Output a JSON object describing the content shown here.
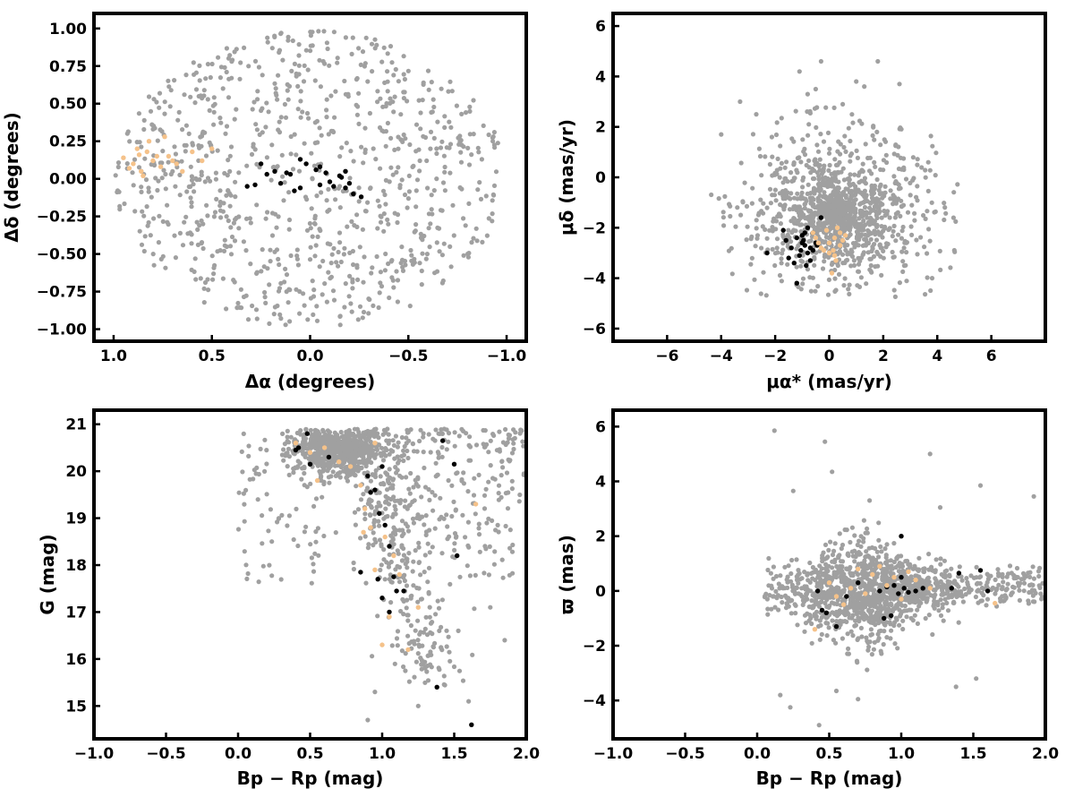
{
  "chart_data": [
    {
      "type": "scatter",
      "panel": "top-left",
      "xlabel": "Δα (degrees)",
      "ylabel": "Δδ (degrees)",
      "xlim": [
        1.1,
        -1.1
      ],
      "ylim": [
        -1.08,
        1.1
      ],
      "xticks": [
        1.0,
        0.5,
        0.0,
        -0.5,
        -1.0
      ],
      "xtick_labels": [
        "1.0",
        "0.5",
        "0.0",
        "−0.5",
        "−1.0"
      ],
      "yticks": [
        -1.0,
        -0.75,
        -0.5,
        -0.25,
        0.0,
        0.25,
        0.5,
        0.75,
        1.0
      ],
      "ytick_labels": [
        "−1.00",
        "−0.75",
        "−0.50",
        "−0.25",
        "0.00",
        "0.25",
        "0.50",
        "0.75",
        "1.00"
      ],
      "background_field": {
        "color": "#a0a0a0",
        "count": 900,
        "distribution": "uniform disk, radius 1.0 deg"
      },
      "series": [
        {
          "color": "#000000",
          "x": [
            -0.15,
            -0.05,
            0.05,
            0.1,
            0.18,
            0.22,
            0.28,
            0.32,
            0.25,
            0.12,
            0.02,
            -0.03,
            -0.08,
            -0.12,
            -0.18,
            -0.22,
            -0.26,
            -0.2,
            -0.16,
            -0.1,
            -0.05,
            0.05,
            0.08,
            0.15,
            -0.18
          ],
          "y": [
            0.02,
            0.08,
            0.13,
            0.03,
            0.05,
            0.03,
            -0.04,
            -0.05,
            0.1,
            0.04,
            0.1,
            0.06,
            0.04,
            -0.05,
            -0.06,
            -0.1,
            -0.12,
            -0.03,
            0.01,
            -0.02,
            -0.04,
            -0.06,
            -0.08,
            -0.03,
            0.05
          ]
        },
        {
          "color": "#f5c28a",
          "x": [
            0.95,
            0.9,
            0.86,
            0.83,
            0.8,
            0.76,
            0.72,
            0.68,
            0.65,
            0.6,
            0.55,
            0.5,
            0.88,
            0.82,
            0.78,
            0.92,
            0.85,
            0.74,
            0.7,
            0.87
          ],
          "y": [
            0.14,
            0.1,
            0.05,
            0.18,
            0.12,
            0.08,
            0.15,
            0.1,
            0.05,
            0.18,
            0.12,
            0.2,
            0.2,
            0.25,
            0.15,
            0.07,
            0.02,
            0.28,
            0.12,
            0.16
          ]
        }
      ]
    },
    {
      "type": "scatter",
      "panel": "top-right",
      "xlabel": "μα* (mas/yr)",
      "ylabel": "μδ (mas/yr)",
      "xlim": [
        -8,
        8
      ],
      "ylim": [
        -6.5,
        6.5
      ],
      "xticks": [
        -6,
        -4,
        -2,
        0,
        2,
        4,
        6
      ],
      "xtick_labels": [
        "−6",
        "−4",
        "−2",
        "0",
        "2",
        "4",
        "6"
      ],
      "yticks": [
        -6,
        -4,
        -2,
        0,
        2,
        4,
        6
      ],
      "ytick_labels": [
        "−6",
        "−4",
        "−2",
        "0",
        "2",
        "4",
        "6"
      ],
      "background_field": {
        "color": "#a0a0a0",
        "count": 1300,
        "distribution": "disk centered (0.2,-1.5), radius ~4.8 mas/yr, densest near center"
      },
      "series": [
        {
          "color": "#000000",
          "x": [
            -1.6,
            -1.4,
            -1.2,
            -1.0,
            -0.9,
            -0.8,
            -0.7,
            -0.6,
            -0.5,
            -1.1,
            -0.9,
            -1.3,
            -0.8,
            -1.5,
            -1.0,
            -0.7,
            -0.3,
            -2.3,
            -1.2,
            -0.95,
            -0.85,
            -1.05,
            -0.6,
            -0.45,
            -1.7
          ],
          "y": [
            -2.5,
            -2.8,
            -2.4,
            -2.3,
            -2.7,
            -3.0,
            -3.3,
            -2.9,
            -2.6,
            -3.1,
            -2.2,
            -3.4,
            -2.0,
            -3.2,
            -2.6,
            -2.8,
            -1.6,
            -3.0,
            -4.2,
            -2.5,
            -3.5,
            -2.9,
            -2.2,
            -2.7,
            -2.1
          ]
        },
        {
          "color": "#f5c28a",
          "x": [
            -0.6,
            -0.4,
            -0.2,
            0.0,
            0.2,
            0.4,
            0.6,
            0.3,
            0.1,
            -0.3,
            0.5,
            0.2,
            -0.1,
            0.4,
            0.0,
            -0.5,
            0.25,
            0.15
          ],
          "y": [
            -2.2,
            -2.6,
            -2.9,
            -3.0,
            -2.4,
            -2.7,
            -2.3,
            -2.0,
            -3.8,
            -2.8,
            -2.5,
            -3.1,
            -2.1,
            -2.2,
            -2.6,
            -2.4,
            -3.3,
            -2.9
          ]
        }
      ]
    },
    {
      "type": "scatter",
      "panel": "bottom-left",
      "xlabel": "Bp − Rp (mag)",
      "ylabel": "G (mag)",
      "xlim": [
        -1.0,
        2.0
      ],
      "ylim": [
        14.3,
        21.3
      ],
      "xticks": [
        -1.0,
        -0.5,
        0.0,
        0.5,
        1.0,
        1.5,
        2.0
      ],
      "xtick_labels": [
        "−1.0",
        "−0.5",
        "0.0",
        "0.5",
        "1.0",
        "1.5",
        "2.0"
      ],
      "yticks": [
        15,
        16,
        17,
        18,
        19,
        20,
        21
      ],
      "ytick_labels": [
        "15",
        "16",
        "17",
        "18",
        "19",
        "20",
        "21"
      ],
      "background_field": {
        "color": "#a0a0a0",
        "count": 1300,
        "distribution": "dense faint clump near (0.7,20.4); giant branch to (1.4,15.4); red faint tail to 2.0"
      },
      "series": [
        {
          "color": "#000000",
          "x": [
            0.48,
            0.4,
            0.42,
            0.5,
            0.63,
            0.9,
            0.92,
            0.95,
            0.98,
            1.0,
            1.02,
            1.05,
            1.08,
            1.1,
            1.15,
            1.05,
            0.85,
            1.38,
            1.42,
            1.52,
            1.62,
            1.5,
            1.0,
            0.97
          ],
          "y": [
            20.8,
            20.45,
            20.5,
            20.15,
            20.3,
            19.9,
            19.55,
            19.6,
            19.1,
            20.1,
            18.85,
            18.4,
            17.75,
            17.45,
            17.45,
            17.0,
            17.85,
            15.4,
            20.65,
            18.2,
            14.6,
            20.15,
            17.3,
            17.7
          ]
        },
        {
          "color": "#f5c28a",
          "x": [
            0.4,
            0.5,
            0.55,
            0.6,
            0.7,
            0.78,
            0.85,
            0.88,
            0.92,
            0.95,
            1.0,
            1.05,
            1.08,
            1.12,
            1.18,
            1.25,
            0.95,
            1.65,
            1.02,
            0.87
          ],
          "y": [
            20.6,
            20.4,
            19.8,
            20.5,
            20.2,
            20.1,
            19.7,
            19.2,
            18.8,
            17.9,
            16.3,
            16.9,
            18.2,
            17.8,
            16.2,
            17.1,
            20.6,
            19.3,
            18.6,
            18.7
          ]
        }
      ]
    },
    {
      "type": "scatter",
      "panel": "bottom-right",
      "xlabel": "Bp − Rp (mag)",
      "ylabel": "ϖ (mas)",
      "xlim": [
        -1.0,
        2.0
      ],
      "ylim": [
        -5.4,
        6.6
      ],
      "xticks": [
        -1.0,
        -0.5,
        0.0,
        0.5,
        1.0,
        1.5,
        2.0
      ],
      "xtick_labels": [
        "−1.0",
        "−0.5",
        "0.0",
        "0.5",
        "1.0",
        "1.5",
        "2.0"
      ],
      "yticks": [
        -4,
        -2,
        0,
        2,
        4,
        6
      ],
      "ytick_labels": [
        "−4",
        "−2",
        "0",
        "2",
        "4",
        "6"
      ],
      "background_field": {
        "color": "#a0a0a0",
        "count": 1300,
        "distribution": "band around ϖ=0, widest near Bp−Rp 0.7, outliers to ±5"
      },
      "series": [
        {
          "color": "#000000",
          "x": [
            0.42,
            0.48,
            0.62,
            0.7,
            0.85,
            0.9,
            0.95,
            0.98,
            1.0,
            1.02,
            1.05,
            1.1,
            1.15,
            1.35,
            1.4,
            1.55,
            1.6,
            1.0,
            0.55,
            0.45,
            0.88,
            0.93
          ],
          "y": [
            0.0,
            -0.8,
            -0.2,
            0.3,
            0.0,
            0.15,
            0.2,
            -0.1,
            0.5,
            0.1,
            -0.05,
            0.0,
            0.1,
            0.1,
            0.65,
            0.75,
            0.0,
            2.0,
            -1.3,
            -0.7,
            -1.0,
            -0.9
          ]
        },
        {
          "color": "#f5c28a",
          "x": [
            0.5,
            0.6,
            0.7,
            0.8,
            0.9,
            1.0,
            1.1,
            1.2,
            0.4,
            1.65,
            0.85,
            0.75,
            0.95,
            1.05,
            0.65,
            0.55
          ],
          "y": [
            0.3,
            -0.5,
            0.8,
            0.6,
            0.2,
            -0.3,
            0.4,
            0.1,
            -1.4,
            -0.45,
            0.9,
            -0.1,
            0.5,
            0.7,
            0.1,
            -0.2
          ]
        }
      ]
    }
  ]
}
